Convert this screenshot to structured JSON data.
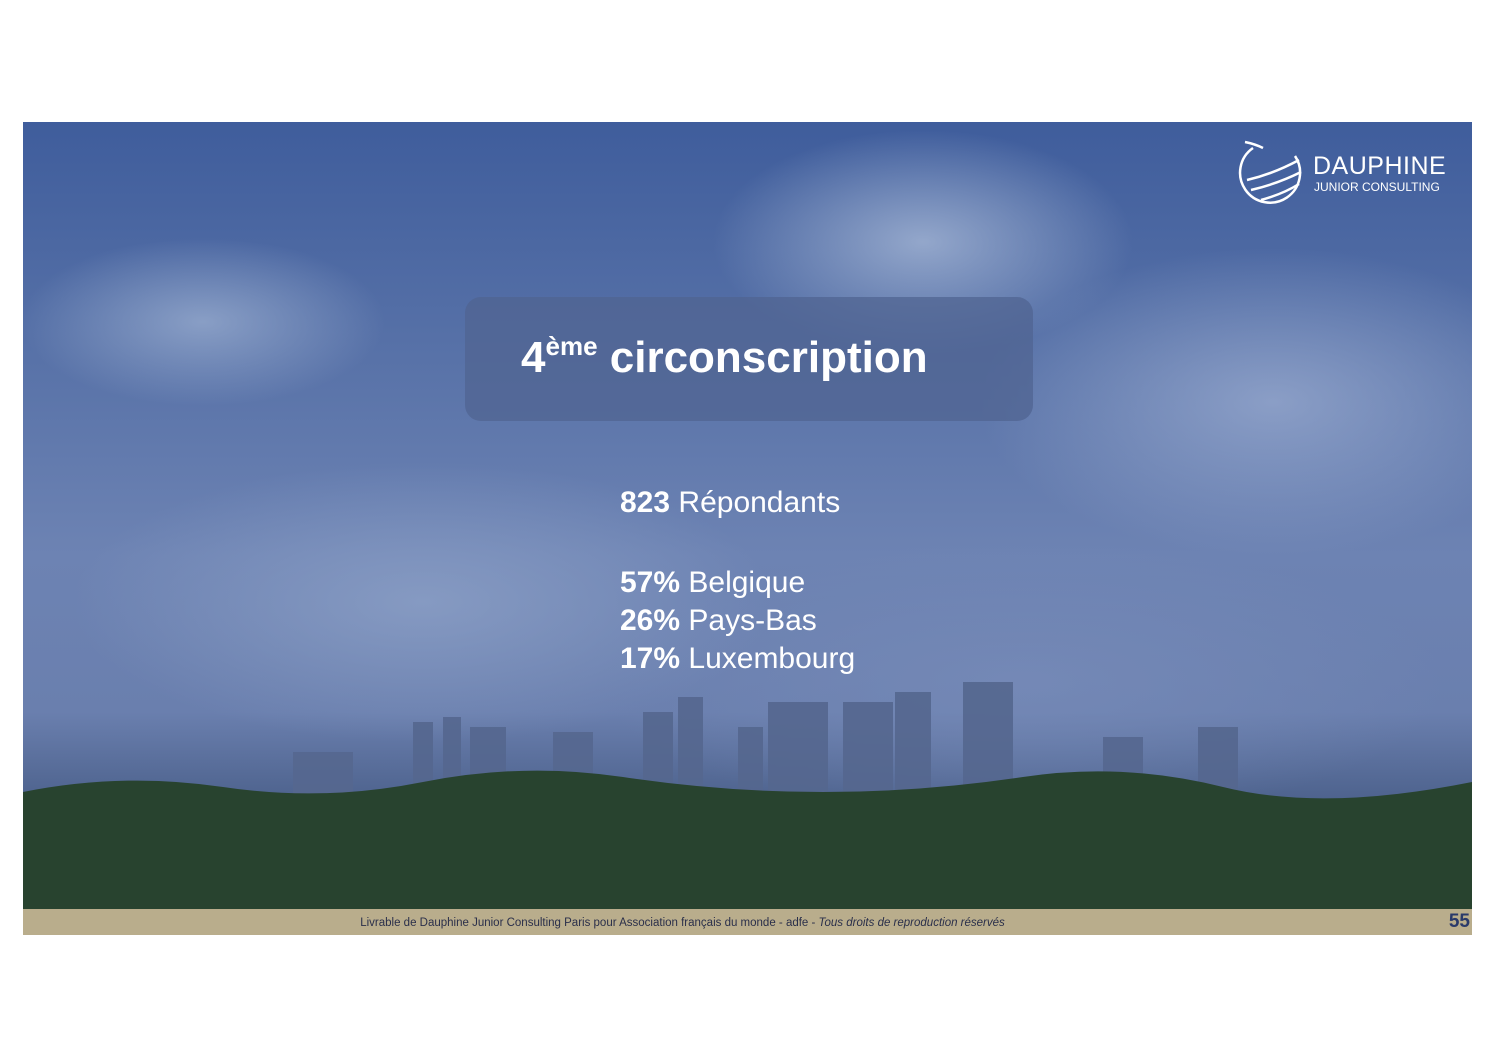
{
  "logo": {
    "name": "DAUPHINE",
    "subtitle": "JUNIOR CONSULTING"
  },
  "title": {
    "number": "4",
    "superscript": "ème",
    "text": "circonscription"
  },
  "stats": {
    "respondents": {
      "value": "823",
      "label": "Répondants"
    },
    "countries": [
      {
        "value": "57%",
        "label": "Belgique"
      },
      {
        "value": "26%",
        "label": "Pays-Bas"
      },
      {
        "value": "17%",
        "label": "Luxembourg"
      }
    ]
  },
  "footer": {
    "text": "Livrable de Dauphine Junior Consulting Paris pour Association français du monde - adfe - ",
    "italic": "Tous droits de reproduction réservés",
    "page": "55"
  },
  "colors": {
    "footer_bg": "#b9ad8c",
    "page_number": "#2a3a6a",
    "overlay": "#3f5d9c"
  }
}
